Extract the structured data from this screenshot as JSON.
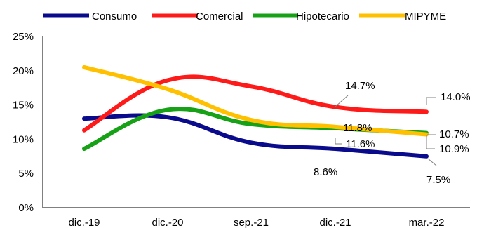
{
  "chart_data": {
    "type": "line",
    "smooth": true,
    "title": "",
    "xlabel": "",
    "ylabel": "",
    "categories": [
      "dic.-19",
      "dic.-20",
      "sep.-21",
      "dic.-21",
      "mar.-22"
    ],
    "yticks": [
      "0%",
      "5%",
      "10%",
      "15%",
      "20%",
      "25%"
    ],
    "ylim": [
      0,
      25
    ],
    "grid": false,
    "legend_position": "top",
    "series": [
      {
        "name": "Consumo",
        "color": "#0a0a8c",
        "values": [
          13.0,
          13.2,
          9.5,
          8.6,
          7.5
        ],
        "labels": [
          {
            "index": 3,
            "text": "8.6%"
          },
          {
            "index": 4,
            "text": "7.5%"
          }
        ]
      },
      {
        "name": "Comercial",
        "color": "#ff1a1a",
        "values": [
          11.3,
          18.6,
          17.7,
          14.7,
          14.0
        ],
        "labels": [
          {
            "index": 3,
            "text": "14.7%"
          },
          {
            "index": 4,
            "text": "14.0%"
          }
        ]
      },
      {
        "name": "Hipotecario",
        "color": "#17a117",
        "values": [
          8.6,
          14.3,
          12.2,
          11.6,
          10.9
        ],
        "labels": [
          {
            "index": 3,
            "text": "11.6%"
          },
          {
            "index": 4,
            "text": "10.9%"
          }
        ]
      },
      {
        "name": "MIPYME",
        "color": "#ffc000",
        "values": [
          20.5,
          17.3,
          12.8,
          11.8,
          10.7
        ],
        "labels": [
          {
            "index": 3,
            "text": "11.8%"
          },
          {
            "index": 4,
            "text": "10.7%"
          }
        ]
      }
    ]
  }
}
